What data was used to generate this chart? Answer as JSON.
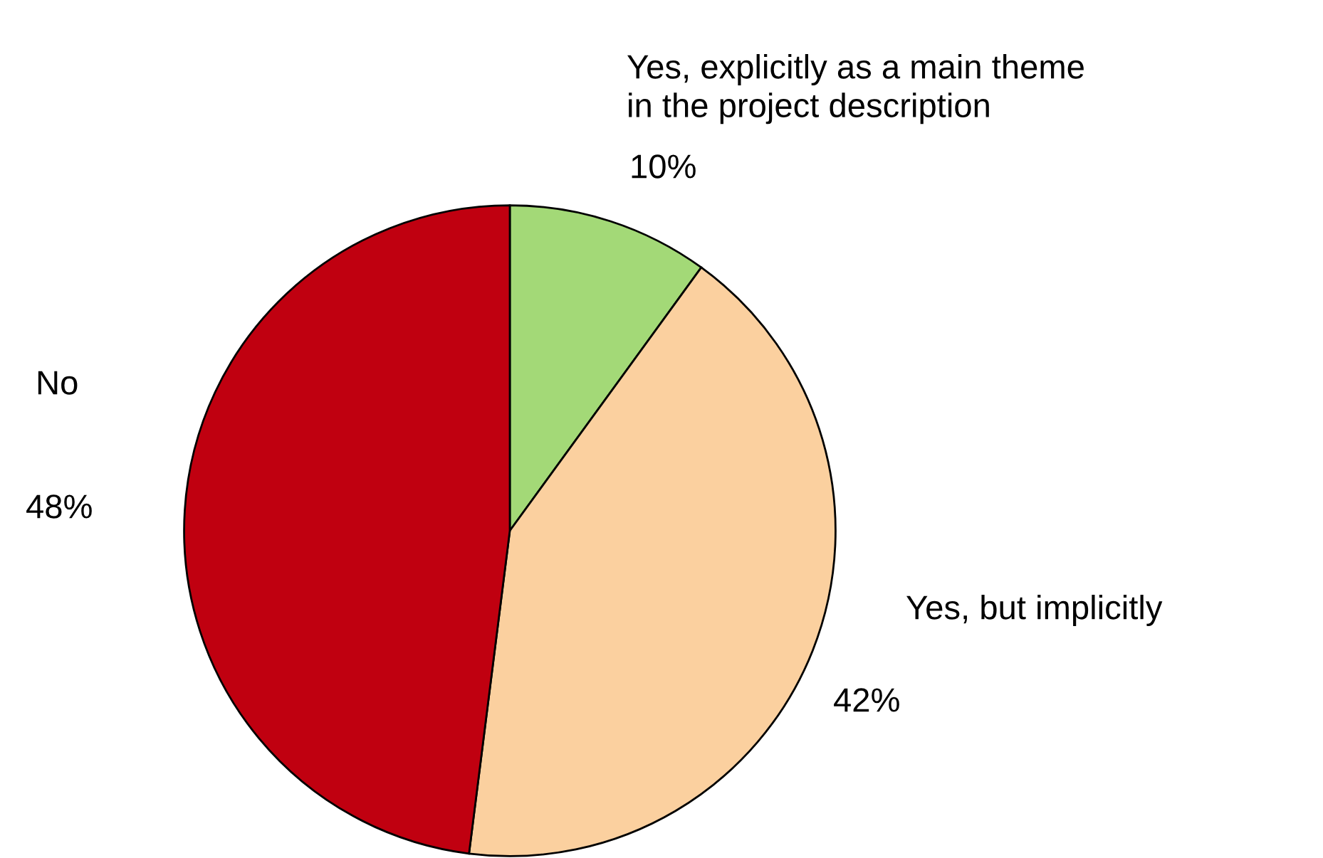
{
  "chart_data": {
    "type": "pie",
    "categories": [
      "Yes, explicitly as a main theme\nin the project description",
      "Yes, but implicitly",
      "No"
    ],
    "values": [
      10,
      42,
      48
    ],
    "colors": [
      "#a3d977",
      "#fbd09f",
      "#c00010"
    ],
    "value_labels": [
      "10%",
      "42%",
      "48%"
    ]
  }
}
